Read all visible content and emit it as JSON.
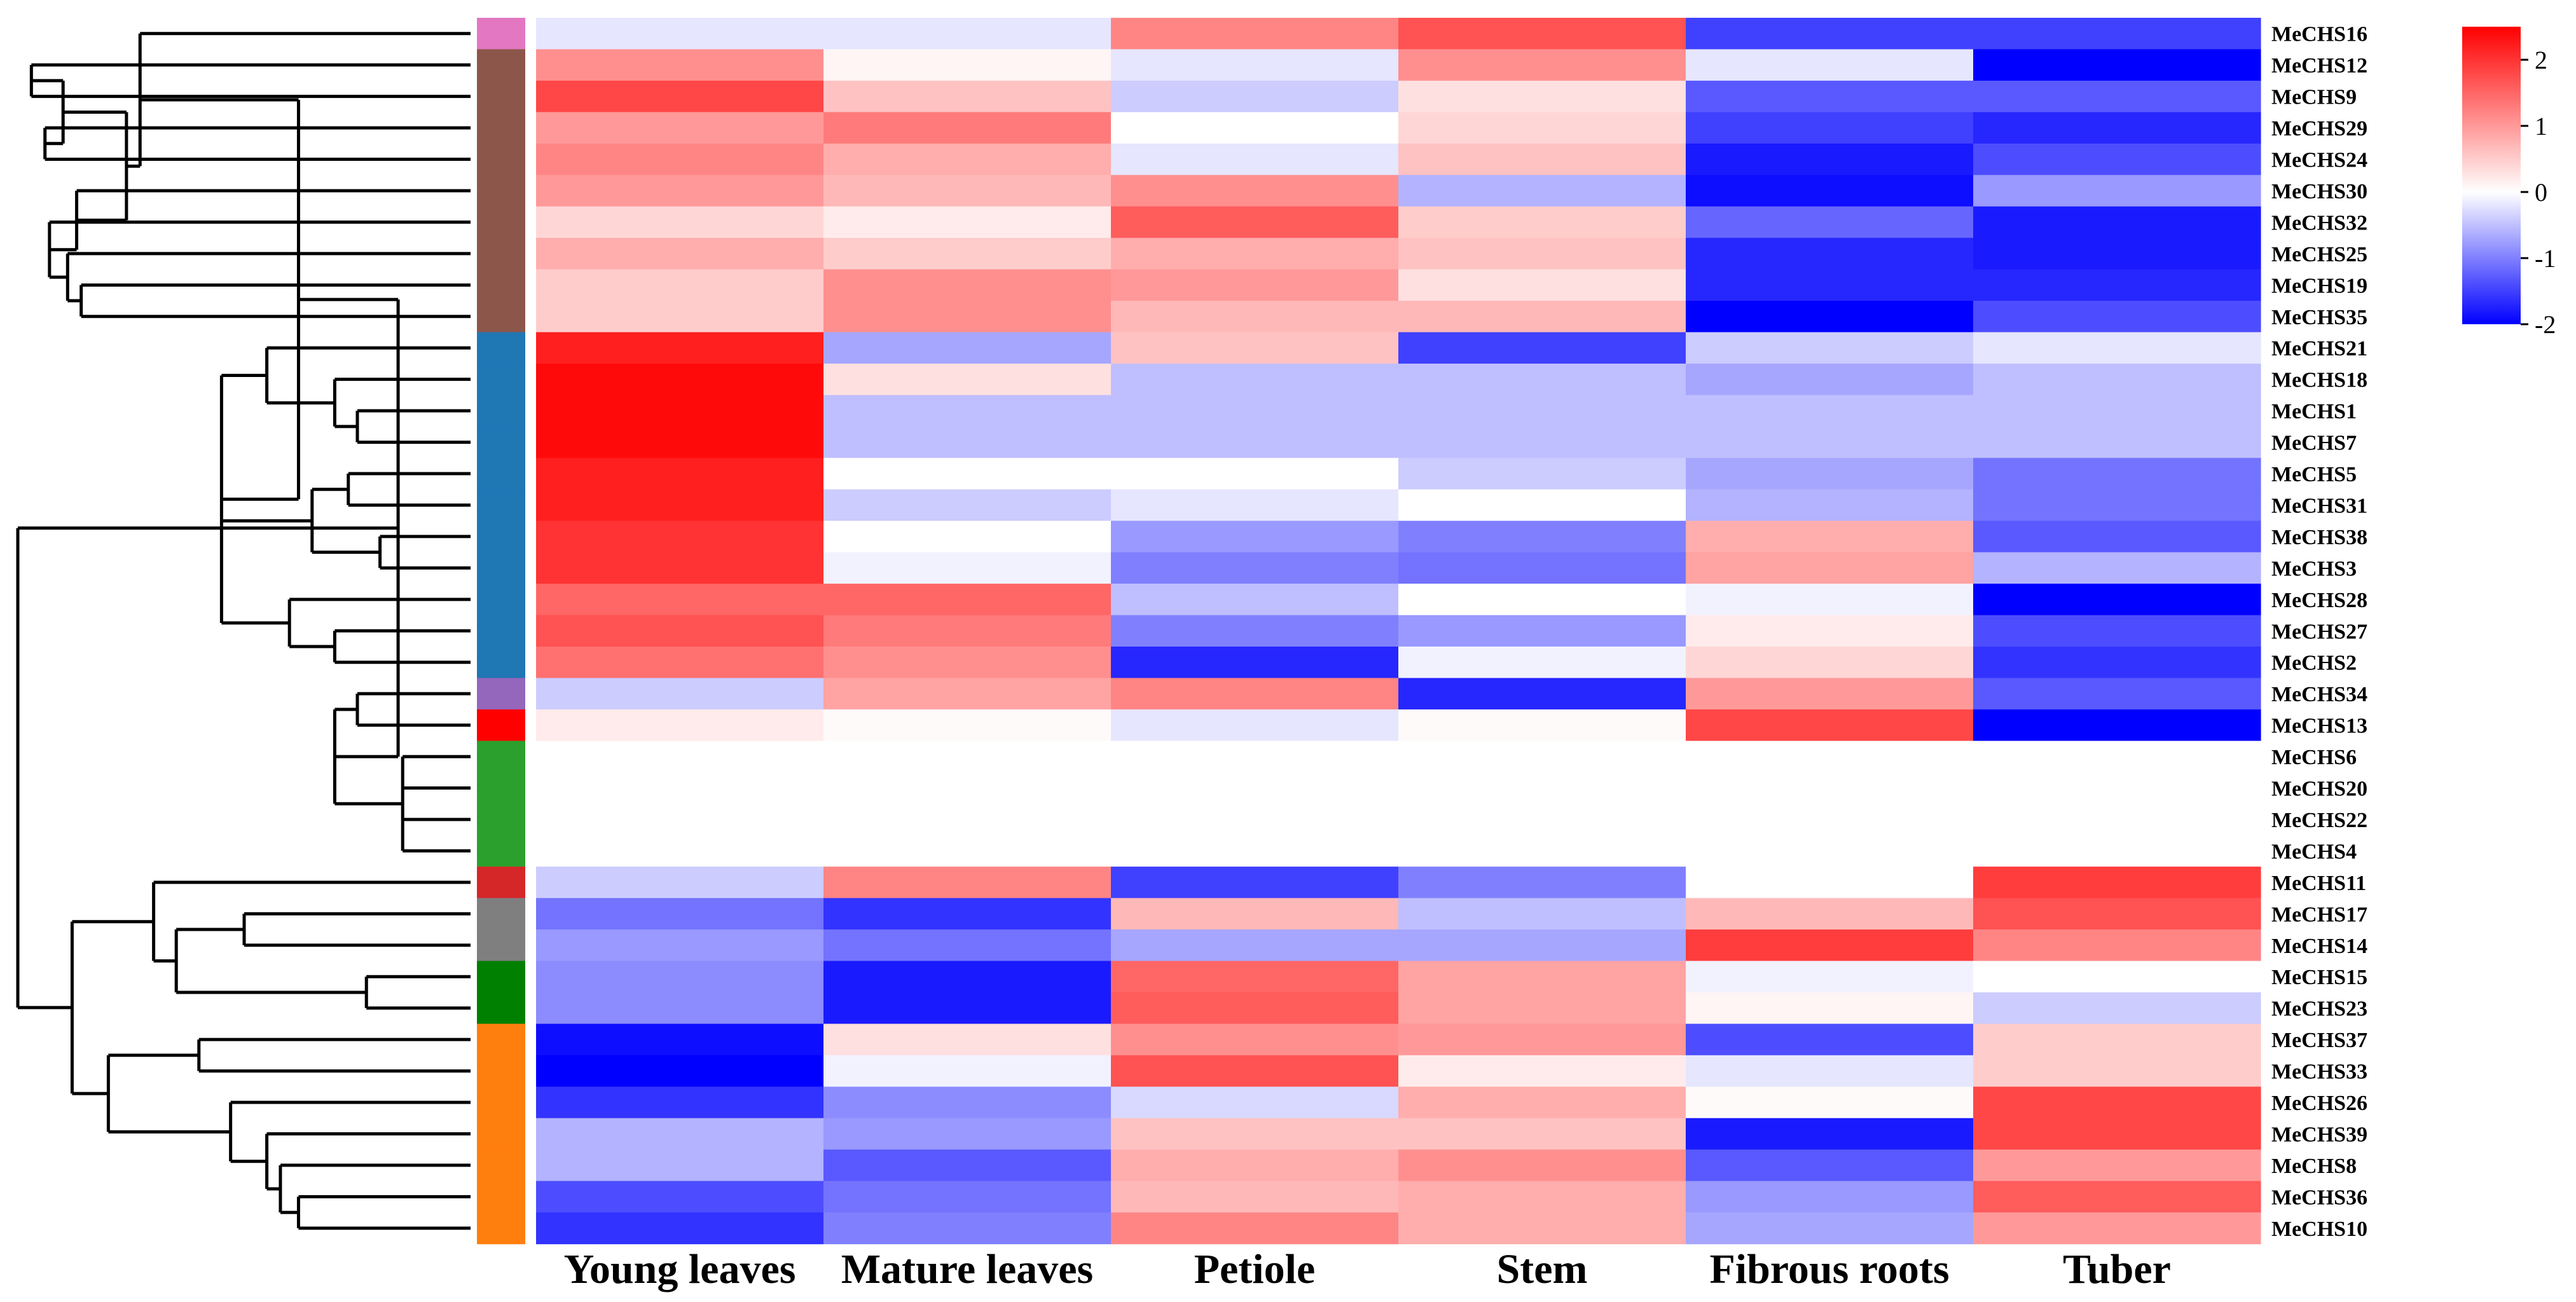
{
  "chart_data": {
    "type": "heatmap",
    "title": "",
    "columns": [
      "Young leaves",
      "Mature leaves",
      "Petiole",
      "Stem",
      "Fibrous roots",
      "Tuber"
    ],
    "rows": [
      {
        "name": "MeCHS16",
        "group": "g1",
        "values": [
          -0.2,
          -0.2,
          1.2,
          1.7,
          -1.5,
          -1.5
        ]
      },
      {
        "name": "MeCHS12",
        "group": "g2",
        "values": [
          1.1,
          0.1,
          -0.2,
          1.1,
          -0.2,
          -2.0
        ]
      },
      {
        "name": "MeCHS9",
        "group": "g2",
        "values": [
          1.8,
          0.6,
          -0.4,
          0.3,
          -1.3,
          -1.3
        ]
      },
      {
        "name": "MeCHS29",
        "group": "g2",
        "values": [
          1.0,
          1.3,
          0.0,
          0.4,
          -1.5,
          -1.7
        ]
      },
      {
        "name": "MeCHS24",
        "group": "g2",
        "values": [
          1.2,
          0.8,
          -0.2,
          0.6,
          -1.8,
          -1.4
        ]
      },
      {
        "name": "MeCHS30",
        "group": "g2",
        "values": [
          1.0,
          0.7,
          1.1,
          -0.6,
          -1.9,
          -0.8
        ]
      },
      {
        "name": "MeCHS32",
        "group": "g2",
        "values": [
          0.4,
          0.2,
          1.6,
          0.5,
          -1.2,
          -1.8
        ]
      },
      {
        "name": "MeCHS25",
        "group": "g2",
        "values": [
          0.8,
          0.5,
          0.8,
          0.6,
          -1.7,
          -1.8
        ]
      },
      {
        "name": "MeCHS19",
        "group": "g2",
        "values": [
          0.5,
          1.1,
          1.0,
          0.3,
          -1.7,
          -1.7
        ]
      },
      {
        "name": "MeCHS35",
        "group": "g2",
        "values": [
          0.5,
          1.1,
          0.7,
          0.7,
          -2.0,
          -1.4
        ]
      },
      {
        "name": "MeCHS21",
        "group": "g3",
        "values": [
          2.2,
          -0.7,
          0.6,
          -1.5,
          -0.4,
          -0.2
        ]
      },
      {
        "name": "MeCHS18",
        "group": "g3",
        "values": [
          2.4,
          0.3,
          -0.5,
          -0.5,
          -0.7,
          -0.5
        ]
      },
      {
        "name": "MeCHS1",
        "group": "g3",
        "values": [
          2.4,
          -0.5,
          -0.5,
          -0.5,
          -0.5,
          -0.5
        ]
      },
      {
        "name": "MeCHS7",
        "group": "g3",
        "values": [
          2.4,
          -0.5,
          -0.5,
          -0.5,
          -0.5,
          -0.5
        ]
      },
      {
        "name": "MeCHS5",
        "group": "g3",
        "values": [
          2.2,
          0.0,
          0.0,
          -0.4,
          -0.7,
          -1.1
        ]
      },
      {
        "name": "MeCHS31",
        "group": "g3",
        "values": [
          2.2,
          -0.4,
          -0.2,
          0.0,
          -0.6,
          -1.1
        ]
      },
      {
        "name": "MeCHS38",
        "group": "g3",
        "values": [
          2.0,
          0.0,
          -0.8,
          -1.0,
          0.8,
          -1.3
        ]
      },
      {
        "name": "MeCHS3",
        "group": "g3",
        "values": [
          2.0,
          -0.1,
          -1.0,
          -1.1,
          0.9,
          -0.6
        ]
      },
      {
        "name": "MeCHS28",
        "group": "g3",
        "values": [
          1.5,
          1.5,
          -0.5,
          0.0,
          -0.1,
          -2.0
        ]
      },
      {
        "name": "MeCHS27",
        "group": "g3",
        "values": [
          1.7,
          1.3,
          -1.0,
          -0.8,
          0.2,
          -1.4
        ]
      },
      {
        "name": "MeCHS2",
        "group": "g3",
        "values": [
          1.4,
          1.1,
          -1.7,
          -0.1,
          0.4,
          -1.6
        ]
      },
      {
        "name": "MeCHS34",
        "group": "g4",
        "values": [
          -0.4,
          0.9,
          1.2,
          -1.7,
          1.0,
          -1.3
        ]
      },
      {
        "name": "MeCHS13",
        "group": "g5",
        "values": [
          0.2,
          0.05,
          -0.2,
          0.05,
          1.8,
          -2.0
        ]
      },
      {
        "name": "MeCHS6",
        "group": "g6",
        "values": [
          0.0,
          0.0,
          0.0,
          0.0,
          0.0,
          0.0
        ]
      },
      {
        "name": "MeCHS20",
        "group": "g6",
        "values": [
          0.0,
          0.0,
          0.0,
          0.0,
          0.0,
          0.0
        ]
      },
      {
        "name": "MeCHS22",
        "group": "g6",
        "values": [
          0.0,
          0.0,
          0.0,
          0.0,
          0.0,
          0.0
        ]
      },
      {
        "name": "MeCHS4",
        "group": "g6",
        "values": [
          0.0,
          0.0,
          0.0,
          0.0,
          0.0,
          0.0
        ]
      },
      {
        "name": "MeCHS11",
        "group": "g7",
        "values": [
          -0.4,
          1.2,
          -1.5,
          -1.0,
          0.0,
          1.9
        ]
      },
      {
        "name": "MeCHS17",
        "group": "g8",
        "values": [
          -1.1,
          -1.6,
          0.7,
          -0.5,
          0.7,
          1.7
        ]
      },
      {
        "name": "MeCHS14",
        "group": "g8",
        "values": [
          -0.8,
          -1.1,
          -0.7,
          -0.7,
          1.9,
          1.2
        ]
      },
      {
        "name": "MeCHS15",
        "group": "g9",
        "values": [
          -0.9,
          -1.8,
          1.5,
          0.9,
          -0.1,
          0.0
        ]
      },
      {
        "name": "MeCHS23",
        "group": "g9",
        "values": [
          -0.9,
          -1.8,
          1.6,
          0.9,
          0.1,
          -0.4
        ]
      },
      {
        "name": "MeCHS37",
        "group": "g10",
        "values": [
          -1.9,
          0.3,
          1.1,
          1.0,
          -1.4,
          0.5
        ]
      },
      {
        "name": "MeCHS33",
        "group": "g10",
        "values": [
          -2.0,
          -0.1,
          1.7,
          0.2,
          -0.2,
          0.5
        ]
      },
      {
        "name": "MeCHS26",
        "group": "g10",
        "values": [
          -1.6,
          -0.9,
          -0.3,
          0.8,
          0.05,
          1.8
        ]
      },
      {
        "name": "MeCHS39",
        "group": "g10",
        "values": [
          -0.6,
          -0.8,
          0.6,
          0.6,
          -1.8,
          1.8
        ]
      },
      {
        "name": "MeCHS8",
        "group": "g10",
        "values": [
          -0.6,
          -1.3,
          0.8,
          1.1,
          -1.3,
          1.0
        ]
      },
      {
        "name": "MeCHS36",
        "group": "g10",
        "values": [
          -1.4,
          -1.1,
          0.7,
          0.8,
          -0.8,
          1.6
        ]
      },
      {
        "name": "MeCHS10",
        "group": "g10",
        "values": [
          -1.6,
          -1.0,
          1.2,
          0.8,
          -0.7,
          1.0
        ]
      }
    ],
    "group_colors": {
      "g1": "#e377c2",
      "g2": "#8c564b",
      "g3": "#1f77b4",
      "g4": "#9467bd",
      "g5": "#ff0000",
      "g6": "#2ca02c",
      "g7": "#d62728",
      "g8": "#7f7f7f",
      "g9": "#008000",
      "g10": "#ff7f0e"
    },
    "color_scale": {
      "min": -2,
      "max": 2.5,
      "low_color": "#0000ff",
      "mid_color": "#ffffff",
      "high_color": "#ff0000",
      "ticks": [
        2,
        1,
        0,
        -1,
        -2
      ]
    },
    "tree": {
      "h": 0,
      "c": [
        {
          "h": 0.84,
          "c": [
            {
              "h": 0.62,
              "c": [
                {
                  "h": 0.27,
                  "c": [
                    {
                      "l": 0
                    },
                    {
                      "h": 0.24,
                      "c": [
                        {
                          "h": 0.1,
                          "c": [
                            {
                              "h": 0.03,
                              "c": [
                                {
                                  "l": 1
                                },
                                {
                                  "l": 2
                                }
                              ]
                            },
                            {
                              "h": 0.06,
                              "c": [
                                {
                                  "l": 3
                                },
                                {
                                  "l": 4
                                }
                              ]
                            }
                          ]
                        },
                        {
                          "h": 0.13,
                          "c": [
                            {
                              "l": 5
                            },
                            {
                              "h": 0.07,
                              "c": [
                                {
                                  "l": 6
                                },
                                {
                                  "h": 0.11,
                                  "c": [
                                    {
                                      "l": 7
                                    },
                                    {
                                      "h": 0.14,
                                      "c": [
                                        {
                                          "l": 8
                                        },
                                        {
                                          "l": 9
                                        }
                                      ]
                                    }
                                  ]
                                }
                              ]
                            }
                          ]
                        }
                      ]
                    }
                  ]
                },
                {
                  "h": 0.45,
                  "c": [
                    {
                      "h": 0.55,
                      "c": [
                        {
                          "l": 10
                        },
                        {
                          "h": 0.7,
                          "c": [
                            {
                              "l": 11
                            },
                            {
                              "h": 0.75,
                              "c": [
                                {
                                  "l": 12
                                },
                                {
                                  "l": 13
                                }
                              ]
                            }
                          ]
                        }
                      ]
                    },
                    {
                      "h": 0.65,
                      "c": [
                        {
                          "h": 0.73,
                          "c": [
                            {
                              "l": 14
                            },
                            {
                              "l": 15
                            }
                          ]
                        },
                        {
                          "h": 0.8,
                          "c": [
                            {
                              "l": 16
                            },
                            {
                              "l": 17
                            }
                          ]
                        }
                      ]
                    },
                    {
                      "h": 0.6,
                      "c": [
                        {
                          "l": 18
                        },
                        {
                          "h": 0.7,
                          "c": [
                            {
                              "l": 19
                            },
                            {
                              "l": 20
                            }
                          ]
                        }
                      ]
                    }
                  ]
                }
              ]
            },
            {
              "h": 0.7,
              "c": [
                {
                  "h": 0.75,
                  "c": [
                    {
                      "l": 21
                    },
                    {
                      "l": 22
                    }
                  ]
                },
                {
                  "h": 0.85,
                  "c": [
                    {
                      "l": 23
                    },
                    {
                      "l": 24
                    },
                    {
                      "l": 25
                    },
                    {
                      "l": 26
                    }
                  ]
                }
              ]
            }
          ]
        },
        {
          "h": 0.12,
          "c": [
            {
              "h": 0.3,
              "c": [
                {
                  "l": 27
                },
                {
                  "h": 0.35,
                  "c": [
                    {
                      "h": 0.5,
                      "c": [
                        {
                          "l": 28
                        },
                        {
                          "l": 29
                        }
                      ]
                    },
                    {
                      "h": 0.77,
                      "c": [
                        {
                          "l": 30
                        },
                        {
                          "l": 31
                        }
                      ]
                    }
                  ]
                }
              ]
            },
            {
              "h": 0.2,
              "c": [
                {
                  "h": 0.4,
                  "c": [
                    {
                      "l": 32
                    },
                    {
                      "l": 33
                    }
                  ]
                },
                {
                  "h": 0.47,
                  "c": [
                    {
                      "l": 34
                    },
                    {
                      "h": 0.55,
                      "c": [
                        {
                          "l": 35
                        },
                        {
                          "h": 0.58,
                          "c": [
                            {
                              "l": 36
                            },
                            {
                              "h": 0.62,
                              "c": [
                                {
                                  "l": 37
                                },
                                {
                                  "l": 38
                                }
                              ]
                            }
                          ]
                        }
                      ]
                    }
                  ]
                }
              ]
            }
          ]
        }
      ]
    }
  }
}
